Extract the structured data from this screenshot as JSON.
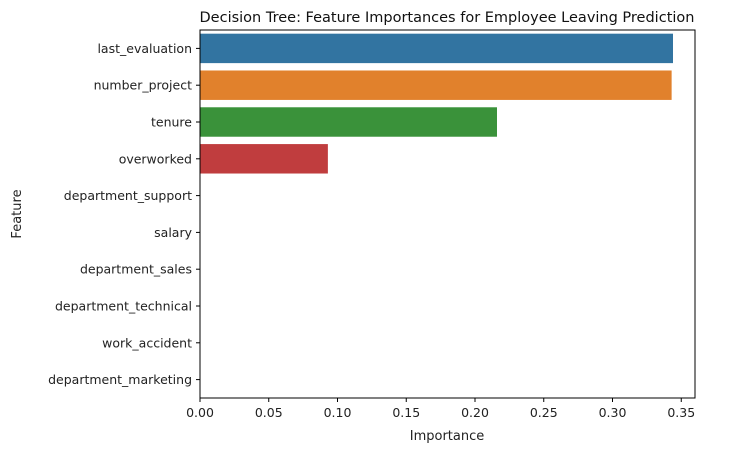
{
  "chart_data": {
    "type": "bar",
    "orientation": "horizontal",
    "title": "Decision Tree: Feature Importances for Employee Leaving Prediction",
    "xlabel": "Importance",
    "ylabel": "Feature",
    "categories": [
      "last_evaluation",
      "number_project",
      "tenure",
      "overworked",
      "department_support",
      "salary",
      "department_sales",
      "department_technical",
      "work_accident",
      "department_marketing"
    ],
    "values": [
      0.344,
      0.343,
      0.216,
      0.093,
      0.0,
      0.0,
      0.0,
      0.0,
      0.0,
      0.0
    ],
    "colors": [
      "#3274a1",
      "#e1812c",
      "#3a923a",
      "#c03d3e",
      "#9372b2",
      "#845b53",
      "#d684bd",
      "#7f7f7f",
      "#a9aa35",
      "#2eaebd"
    ],
    "xlim": [
      0,
      0.36
    ],
    "xticks": [
      0.0,
      0.05,
      0.1,
      0.15,
      0.2,
      0.25,
      0.3,
      0.35
    ],
    "xtick_labels": [
      "0.00",
      "0.05",
      "0.10",
      "0.15",
      "0.20",
      "0.25",
      "0.30",
      "0.35"
    ],
    "grid": false,
    "legend": "none"
  }
}
